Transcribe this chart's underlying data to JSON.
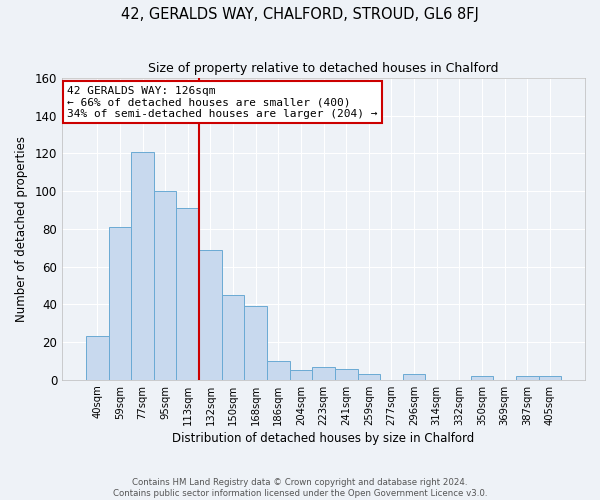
{
  "title": "42, GERALDS WAY, CHALFORD, STROUD, GL6 8FJ",
  "subtitle": "Size of property relative to detached houses in Chalford",
  "xlabel": "Distribution of detached houses by size in Chalford",
  "ylabel": "Number of detached properties",
  "bin_labels": [
    "40sqm",
    "59sqm",
    "77sqm",
    "95sqm",
    "113sqm",
    "132sqm",
    "150sqm",
    "168sqm",
    "186sqm",
    "204sqm",
    "223sqm",
    "241sqm",
    "259sqm",
    "277sqm",
    "296sqm",
    "314sqm",
    "332sqm",
    "350sqm",
    "369sqm",
    "387sqm",
    "405sqm"
  ],
  "bar_heights": [
    23,
    81,
    121,
    100,
    91,
    69,
    45,
    39,
    10,
    5,
    7,
    6,
    3,
    0,
    3,
    0,
    0,
    2,
    0,
    2,
    2
  ],
  "bar_color": "#c8d9ee",
  "bar_edge_color": "#6aaad4",
  "ylim": [
    0,
    160
  ],
  "yticks": [
    0,
    20,
    40,
    60,
    80,
    100,
    120,
    140,
    160
  ],
  "annotation_text": "42 GERALDS WAY: 126sqm\n← 66% of detached houses are smaller (400)\n34% of semi-detached houses are larger (204) →",
  "annotation_box_color": "#ffffff",
  "annotation_box_edge": "#cc0000",
  "vline_color": "#cc0000",
  "footer_line1": "Contains HM Land Registry data © Crown copyright and database right 2024.",
  "footer_line2": "Contains public sector information licensed under the Open Government Licence v3.0.",
  "background_color": "#eef2f7",
  "grid_color": "#ffffff"
}
